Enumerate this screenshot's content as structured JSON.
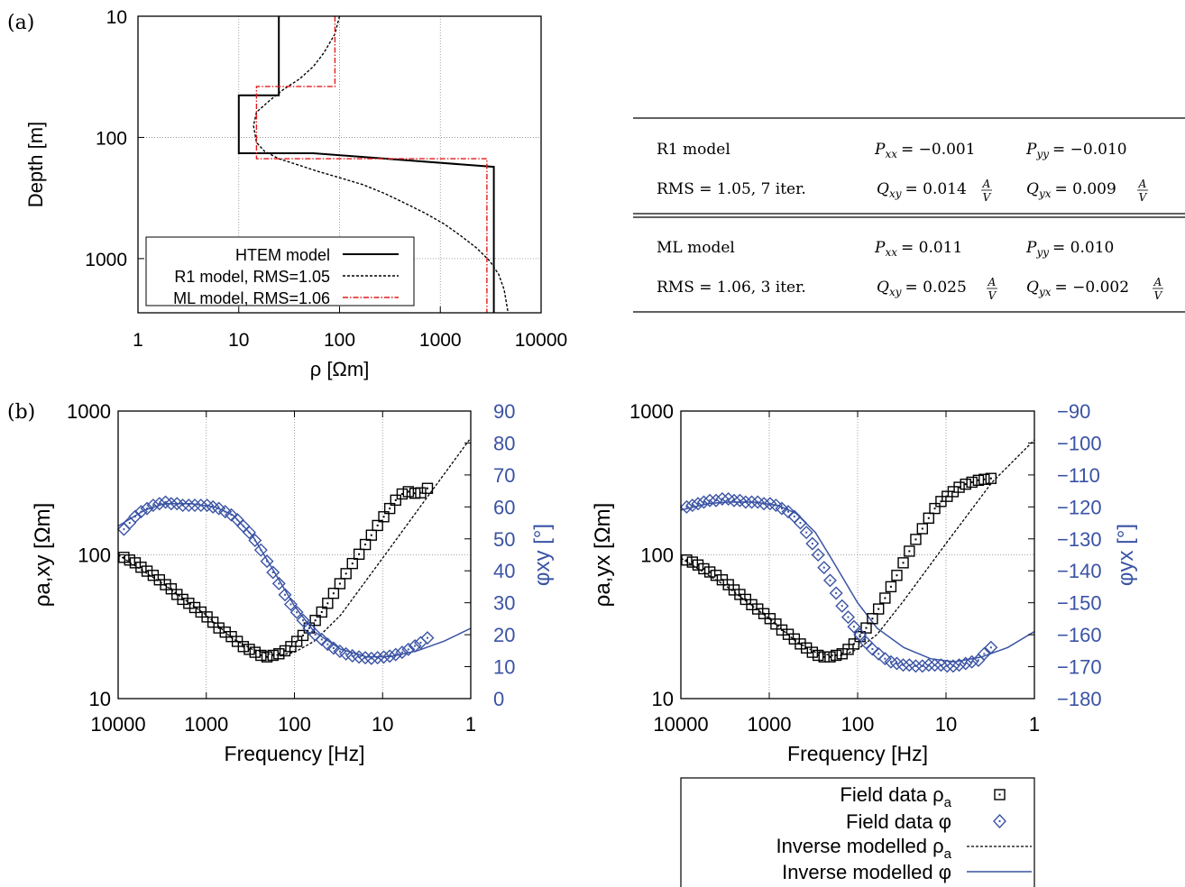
{
  "panel_labels": {
    "a": "(a)",
    "b": "(b)"
  },
  "table": {
    "rows": [
      {
        "model": "R1 model",
        "pxx": "P",
        "pxx_sub": "xx",
        "pxx_val": "= −0.001",
        "pyy": "P",
        "pyy_sub": "yy",
        "pyy_val": "= −0.010",
        "rms": "RMS = 1.05,  7 iter.",
        "qxy": "Q",
        "qxy_sub": "xy",
        "qxy_val": "= 0.014",
        "qyx": "Q",
        "qyx_sub": "yx",
        "qyx_val": "= 0.009",
        "unit_num": "A",
        "unit_den": "V"
      },
      {
        "model": "ML model",
        "pxx": "P",
        "pxx_sub": "xx",
        "pxx_val": "= 0.011",
        "pyy": "P",
        "pyy_sub": "yy",
        "pyy_val": "= 0.010",
        "rms": "RMS = 1.06,  3 iter.",
        "qxy": "Q",
        "qxy_sub": "xy",
        "qxy_val": "= 0.025",
        "qyx": "Q",
        "qyx_sub": "yx",
        "qyx_val": "= −0.002",
        "unit_num": "A",
        "unit_den": "V"
      }
    ]
  },
  "legend_b": {
    "items": [
      "Field data ρ",
      "Field data φ",
      "Inverse modelled ρ",
      "Inverse modelled φ"
    ],
    "sub": "a"
  },
  "colors": {
    "black": "#000000",
    "red": "#e41a1c",
    "blue": "#3a53a4",
    "grid": "#888888"
  },
  "chart_data": [
    {
      "type": "line",
      "panel": "(a)",
      "xlabel": "ρ [Ωm]",
      "ylabel": "Depth [m]",
      "xscale": "log",
      "yscale": "log",
      "yreversed": true,
      "xlim": [
        1,
        10000
      ],
      "ylim": [
        10,
        2800
      ],
      "xticks": [
        "1",
        "10",
        "100",
        "1000",
        "10000"
      ],
      "yticks": [
        "10",
        "100",
        "1000"
      ],
      "grid": true,
      "legend_position": "bottom-left",
      "series": [
        {
          "name": "HTEM model",
          "style": "solid",
          "color": "#000000",
          "rho": [
            25,
            25,
            10,
            10,
            55,
            3400,
            3400
          ],
          "depth": [
            10,
            45,
            45,
            135,
            135,
            175,
            2800
          ],
          "step": true
        },
        {
          "name": "R1 model, RMS=1.05",
          "style": "dashed",
          "color": "#000000",
          "rho": [
            100,
            90,
            70,
            55,
            40,
            28,
            20,
            15,
            14,
            15,
            18,
            25,
            40,
            60,
            100,
            170,
            280,
            450,
            700,
            1100,
            1600,
            2300,
            3100,
            3800,
            4300,
            4700
          ],
          "depth": [
            10,
            14,
            20,
            26,
            33,
            40,
            50,
            62,
            80,
            110,
            130,
            150,
            170,
            190,
            215,
            245,
            290,
            350,
            420,
            520,
            650,
            820,
            1050,
            1350,
            1800,
            2800
          ]
        },
        {
          "name": "ML model, RMS=1.06",
          "style": "dashdot",
          "color": "#e41a1c",
          "rho": [
            90,
            90,
            15,
            15,
            2900,
            2900
          ],
          "depth": [
            10,
            38,
            38,
            150,
            150,
            2800
          ],
          "step": true
        }
      ]
    },
    {
      "type": "scatter",
      "panel": "(b) left",
      "xlabel": "Frequency [Hz]",
      "ylabel": "ρa,xy [Ωm]",
      "y2label": "φxy [°]",
      "xscale": "log",
      "xreversed": true,
      "yscale": "log",
      "xlim": [
        10000,
        1
      ],
      "ylim": [
        10,
        1000
      ],
      "y2lim": [
        0,
        90
      ],
      "xticks": [
        "10000",
        "1000",
        "100",
        "10",
        "1"
      ],
      "yticks": [
        "10",
        "100",
        "1000"
      ],
      "y2ticks": [
        "0",
        "10",
        "20",
        "30",
        "40",
        "50",
        "60",
        "70",
        "80",
        "90"
      ],
      "grid": true,
      "series": [
        {
          "name": "Field data ρa",
          "marker": "square",
          "color": "#000000",
          "f": [
            8600,
            7400,
            6400,
            5500,
            4700,
            4000,
            3400,
            2900,
            2500,
            2150,
            1850,
            1580,
            1350,
            1150,
            980,
            840,
            720,
            610,
            520,
            445,
            380,
            325,
            280,
            240,
            205,
            175,
            150,
            128,
            110,
            94,
            80,
            68,
            58,
            49,
            42,
            36,
            30.5,
            26,
            22,
            18.5,
            15.7,
            13.4,
            11.4,
            9.7,
            8.3,
            7.1,
            6,
            5.1,
            4.3,
            3.7,
            3.1
          ],
          "rho": [
            96,
            92,
            88,
            82,
            77,
            72,
            67,
            62,
            58,
            53,
            49,
            46,
            43,
            40,
            37,
            34,
            31,
            29,
            27,
            25,
            23,
            22,
            21,
            20,
            19.5,
            20,
            20.5,
            21.5,
            23,
            25,
            27.5,
            31,
            35,
            40,
            46,
            54,
            63,
            74,
            87,
            101,
            118,
            137,
            160,
            184,
            210,
            240,
            265,
            275,
            268,
            270,
            290
          ]
        },
        {
          "name": "Field data φ",
          "marker": "diamond",
          "color": "#3a53a4",
          "f": [
            8600,
            7400,
            6400,
            5500,
            4700,
            4000,
            3400,
            2900,
            2500,
            2150,
            1850,
            1580,
            1350,
            1150,
            980,
            840,
            720,
            610,
            520,
            445,
            380,
            325,
            280,
            240,
            205,
            175,
            150,
            128,
            110,
            94,
            80,
            68,
            58,
            49,
            42,
            36,
            30.5,
            26,
            22,
            18.5,
            15.7,
            13.4,
            11.4,
            9.7,
            8.3,
            7.1,
            6,
            5.1,
            4.3,
            3.7,
            3.1
          ],
          "phi": [
            53,
            55,
            57,
            58.5,
            59.5,
            60.5,
            61,
            61.5,
            61,
            61,
            60.5,
            60.5,
            60.5,
            60.5,
            60.5,
            60,
            59.5,
            58.5,
            57.5,
            56,
            54,
            52,
            49.5,
            46.5,
            43,
            39.5,
            36,
            32.5,
            29.5,
            27,
            24.5,
            22,
            20,
            18.5,
            17,
            15.8,
            14.8,
            14,
            13.4,
            13,
            12.8,
            12.6,
            12.8,
            13,
            13.3,
            13.8,
            14.5,
            15.4,
            16.5,
            17.5,
            19
          ]
        },
        {
          "name": "Inverse modelled ρa",
          "style": "dashed",
          "color": "#000000",
          "f": [
            10000,
            3000,
            1000,
            500,
            300,
            200,
            150,
            100,
            60,
            30,
            10,
            3,
            1
          ],
          "rho": [
            100,
            62,
            38,
            26,
            22,
            20.5,
            20,
            21,
            25,
            38,
            95,
            260,
            650
          ]
        },
        {
          "name": "Inverse modelled φ",
          "style": "solid",
          "color": "#3a53a4",
          "f": [
            10000,
            5000,
            3000,
            1500,
            800,
            500,
            300,
            200,
            100,
            60,
            30,
            15,
            8,
            4,
            2,
            1
          ],
          "phi": [
            54,
            59,
            61,
            61,
            60,
            57.5,
            51,
            43,
            29,
            21,
            15.5,
            13,
            13.2,
            15,
            18,
            22
          ]
        }
      ]
    },
    {
      "type": "scatter",
      "panel": "(b) right",
      "xlabel": "Frequency [Hz]",
      "ylabel": "ρa,yx [Ωm]",
      "y2label": "φyx [°]",
      "xscale": "log",
      "xreversed": true,
      "yscale": "log",
      "xlim": [
        10000,
        1
      ],
      "ylim": [
        10,
        1000
      ],
      "y2lim": [
        -180,
        -90
      ],
      "xticks": [
        "10000",
        "1000",
        "100",
        "10",
        "1"
      ],
      "yticks": [
        "10",
        "100",
        "1000"
      ],
      "y2ticks": [
        "−180",
        "−170",
        "−160",
        "−150",
        "−140",
        "−130",
        "−120",
        "−110",
        "−100",
        "−90"
      ],
      "grid": true,
      "series": [
        {
          "name": "Field data ρa",
          "marker": "square",
          "color": "#000000",
          "f": [
            8600,
            7400,
            6400,
            5500,
            4700,
            4000,
            3400,
            2900,
            2500,
            2150,
            1850,
            1580,
            1350,
            1150,
            980,
            840,
            720,
            610,
            520,
            445,
            380,
            325,
            280,
            240,
            205,
            175,
            150,
            128,
            110,
            94,
            80,
            68,
            58,
            49,
            42,
            36,
            30.5,
            26,
            22,
            18.5,
            15.7,
            13.4,
            11.4,
            9.7,
            8.3,
            7.1,
            6,
            5.1,
            4.3,
            3.7,
            3.1
          ],
          "rho": [
            92,
            89,
            85,
            80,
            76,
            72,
            67,
            62,
            57,
            53,
            49,
            45,
            42,
            39,
            36,
            33,
            30,
            28,
            26,
            24,
            22.5,
            21,
            20,
            19.5,
            19.5,
            20,
            20.5,
            22,
            24,
            27,
            31,
            36,
            42,
            50,
            60,
            72,
            88,
            106,
            128,
            152,
            180,
            210,
            235,
            255,
            275,
            295,
            310,
            320,
            330,
            335,
            340
          ]
        },
        {
          "name": "Field data φ",
          "marker": "diamond",
          "color": "#3a53a4",
          "f": [
            8600,
            7400,
            6400,
            5500,
            4700,
            4000,
            3400,
            2900,
            2500,
            2150,
            1850,
            1580,
            1350,
            1150,
            980,
            840,
            720,
            610,
            520,
            445,
            380,
            325,
            280,
            240,
            205,
            175,
            150,
            128,
            110,
            94,
            80,
            68,
            58,
            49,
            42,
            36,
            30.5,
            26,
            22,
            18.5,
            15.7,
            13.4,
            11.4,
            9.7,
            8.3,
            7.1,
            6,
            5.1,
            4.3,
            3.7,
            3.1
          ],
          "phi": [
            -120,
            -119.5,
            -119,
            -118.5,
            -118,
            -118,
            -117.5,
            -117.5,
            -118,
            -118,
            -118.5,
            -118.5,
            -118.5,
            -119,
            -119,
            -119.5,
            -120.5,
            -121.5,
            -123,
            -125,
            -128,
            -131.5,
            -135,
            -139,
            -143,
            -147,
            -151,
            -154.5,
            -157.5,
            -160,
            -162.5,
            -164.5,
            -166,
            -167.5,
            -168.5,
            -169,
            -169.5,
            -169.5,
            -169.8,
            -169.8,
            -169.5,
            -169.5,
            -169.5,
            -169.8,
            -169.8,
            -169.5,
            -169,
            -168.5,
            -168,
            -166,
            -164
          ]
        },
        {
          "name": "Inverse modelled ρa",
          "style": "dashed",
          "color": "#000000",
          "f": [
            10000,
            3000,
            1000,
            500,
            300,
            200,
            150,
            100,
            60,
            30,
            10,
            3,
            1
          ],
          "rho": [
            95,
            60,
            36,
            25,
            21,
            20,
            20,
            22,
            28,
            48,
            120,
            320,
            630
          ]
        },
        {
          "name": "Inverse modelled φ",
          "style": "solid",
          "color": "#3a53a4",
          "f": [
            10000,
            5000,
            3000,
            1500,
            800,
            500,
            300,
            200,
            100,
            60,
            30,
            15,
            8,
            4,
            2,
            1
          ],
          "phi": [
            -121,
            -119,
            -118.5,
            -118.5,
            -119.5,
            -122,
            -128,
            -136,
            -150,
            -158,
            -164,
            -167.5,
            -168.5,
            -167,
            -164,
            -159
          ]
        }
      ]
    }
  ]
}
